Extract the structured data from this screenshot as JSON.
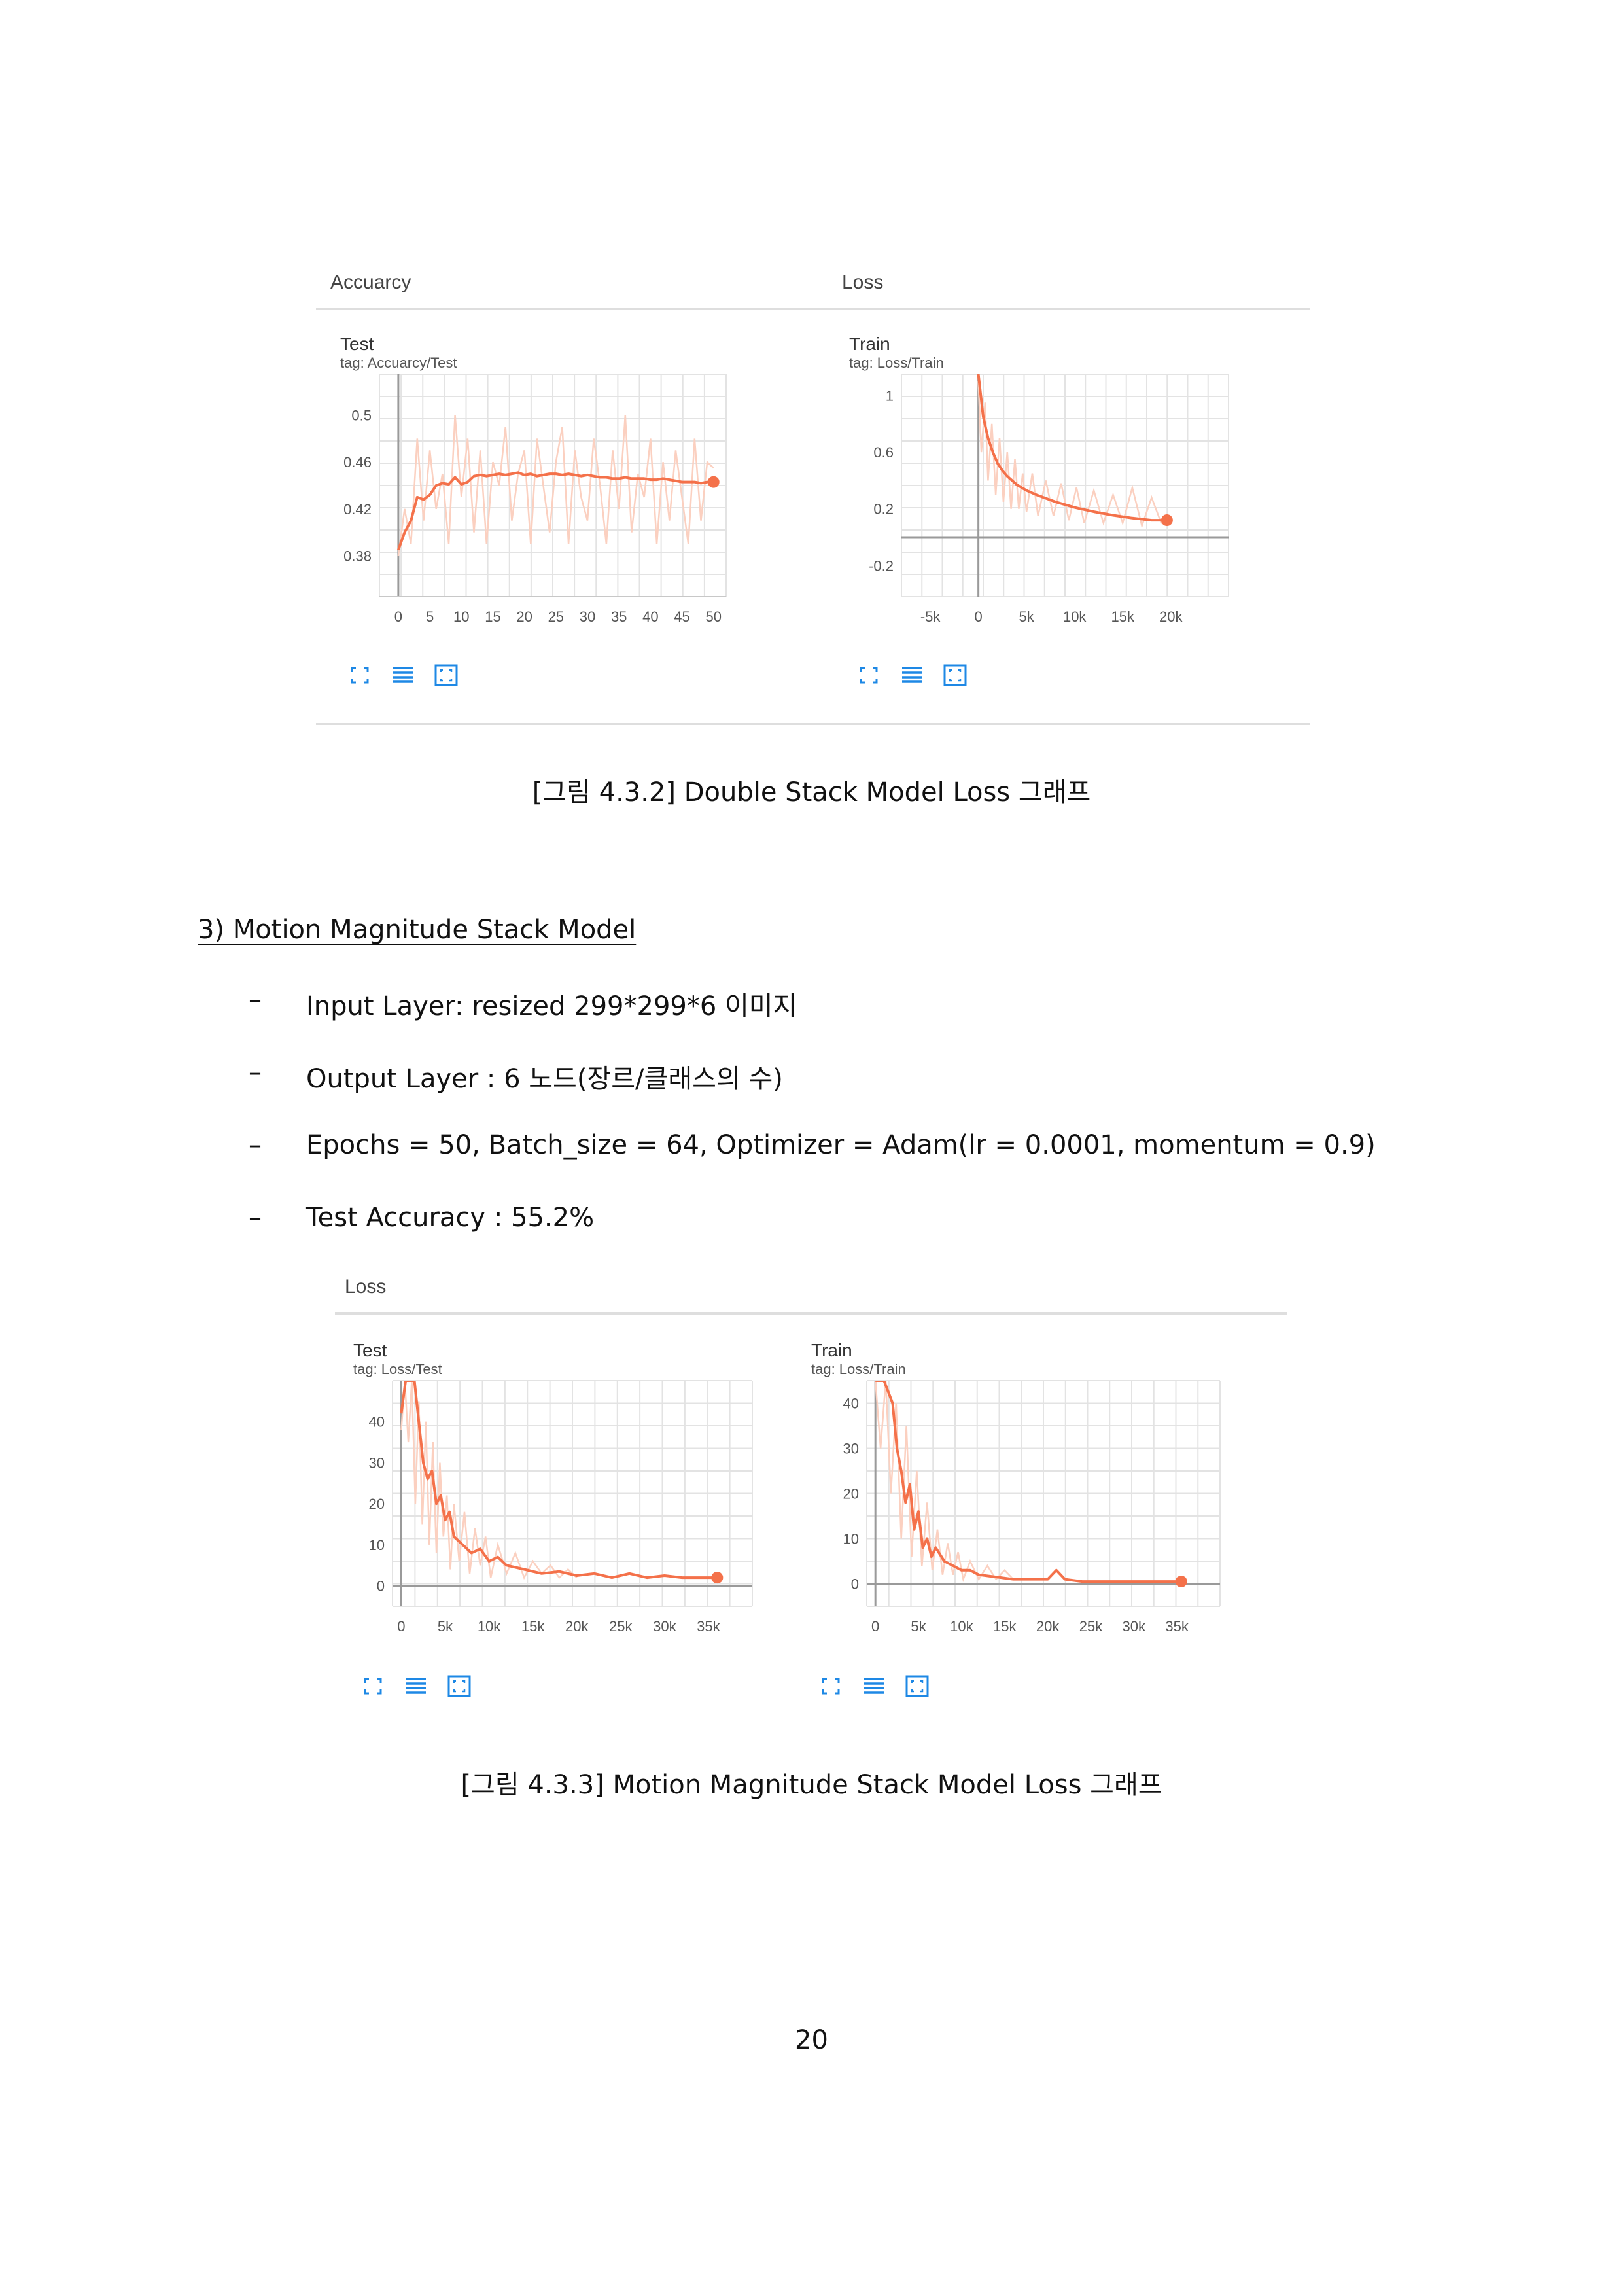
{
  "figure1": {
    "panels": [
      {
        "id": "f1p1",
        "group_title": "Accuarcy",
        "title": "Test",
        "tag": "tag: Accuarcy/Test",
        "chart_data": {
          "type": "line",
          "title": "Test",
          "x_ticks": [
            "0",
            "5",
            "10",
            "15",
            "20",
            "25",
            "30",
            "35",
            "40",
            "45",
            "50"
          ],
          "y_ticks": [
            "0.38",
            "0.42",
            "0.46",
            "0.5"
          ],
          "xlim": [
            -3,
            52
          ],
          "ylim": [
            0.345,
            0.535
          ],
          "smoothed": {
            "x": [
              0,
              1,
              2,
              3,
              4,
              5,
              6,
              7,
              8,
              9,
              10,
              11,
              12,
              13,
              14,
              15,
              16,
              17,
              18,
              19,
              20,
              21,
              22,
              23,
              24,
              25,
              26,
              27,
              28,
              29,
              30,
              31,
              32,
              33,
              34,
              35,
              36,
              37,
              38,
              39,
              40,
              41,
              42,
              43,
              44,
              45,
              46,
              47,
              48,
              49,
              50
            ],
            "y": [
              0.385,
              0.4,
              0.41,
              0.43,
              0.428,
              0.432,
              0.44,
              0.442,
              0.441,
              0.447,
              0.441,
              0.443,
              0.448,
              0.449,
              0.448,
              0.449,
              0.45,
              0.449,
              0.45,
              0.451,
              0.449,
              0.45,
              0.448,
              0.449,
              0.45,
              0.45,
              0.449,
              0.45,
              0.449,
              0.448,
              0.449,
              0.448,
              0.447,
              0.447,
              0.446,
              0.446,
              0.447,
              0.446,
              0.446,
              0.446,
              0.445,
              0.445,
              0.446,
              0.445,
              0.444,
              0.443,
              0.443,
              0.443,
              0.442,
              0.443,
              0.443
            ]
          },
          "raw": {
            "x": [
              0,
              1,
              2,
              3,
              4,
              5,
              6,
              7,
              8,
              9,
              10,
              11,
              12,
              13,
              14,
              15,
              16,
              17,
              18,
              19,
              20,
              21,
              22,
              23,
              24,
              25,
              26,
              27,
              28,
              29,
              30,
              31,
              32,
              33,
              34,
              35,
              36,
              37,
              38,
              39,
              40,
              41,
              42,
              43,
              44,
              45,
              46,
              47,
              48,
              49,
              50
            ],
            "y": [
              0.38,
              0.42,
              0.39,
              0.48,
              0.41,
              0.47,
              0.42,
              0.45,
              0.39,
              0.5,
              0.43,
              0.48,
              0.4,
              0.47,
              0.39,
              0.46,
              0.44,
              0.49,
              0.41,
              0.45,
              0.47,
              0.39,
              0.48,
              0.44,
              0.4,
              0.46,
              0.49,
              0.39,
              0.47,
              0.43,
              0.41,
              0.48,
              0.44,
              0.39,
              0.47,
              0.42,
              0.5,
              0.4,
              0.45,
              0.43,
              0.48,
              0.39,
              0.46,
              0.41,
              0.47,
              0.43,
              0.39,
              0.48,
              0.41,
              0.46,
              0.455
            ]
          },
          "colors": {
            "smoothed": "#f4714a",
            "raw": "#fbd0c0"
          }
        }
      },
      {
        "id": "f1p2",
        "group_title": "Loss",
        "title": "Train",
        "tag": "tag: Loss/Train",
        "chart_data": {
          "type": "line",
          "title": "Train",
          "x_ticks": [
            "-5k",
            "0",
            "5k",
            "10k",
            "15k",
            "20k"
          ],
          "y_ticks": [
            "-0.2",
            "0.2",
            "0.6",
            "1"
          ],
          "xlim": [
            -8000,
            26000
          ],
          "ylim": [
            -0.42,
            1.15
          ],
          "smoothed": {
            "x": [
              0,
              500,
              1000,
              1500,
              2000,
              2500,
              3000,
              4000,
              5000,
              6000,
              8000,
              10000,
              12000,
              14000,
              16000,
              18000,
              19600
            ],
            "y": [
              1.15,
              0.85,
              0.7,
              0.6,
              0.52,
              0.47,
              0.43,
              0.37,
              0.33,
              0.3,
              0.25,
              0.21,
              0.18,
              0.155,
              0.135,
              0.12,
              0.12
            ]
          },
          "raw": {
            "x": [
              0,
              300,
              700,
              1000,
              1400,
              1800,
              2200,
              2600,
              3000,
              3400,
              3800,
              4200,
              4600,
              5000,
              5600,
              6200,
              7000,
              7800,
              8600,
              9400,
              10200,
              11000,
              12000,
              13000,
              14000,
              15000,
              16000,
              17000,
              18000,
              19000,
              19600
            ],
            "y": [
              1.1,
              0.6,
              0.95,
              0.4,
              0.8,
              0.3,
              0.7,
              0.25,
              0.6,
              0.2,
              0.55,
              0.2,
              0.45,
              0.18,
              0.45,
              0.15,
              0.4,
              0.15,
              0.38,
              0.12,
              0.35,
              0.1,
              0.33,
              0.1,
              0.3,
              0.1,
              0.35,
              0.08,
              0.28,
              0.1,
              0.12
            ]
          },
          "colors": {
            "smoothed": "#f4714a",
            "raw": "#fbd0c0"
          }
        }
      }
    ],
    "caption": "[그림 4.3.2] Double Stack Model Loss 그래프"
  },
  "section": {
    "heading": "3) Motion Magnitude Stack Model",
    "bullets": [
      "Input Layer: resized 299*299*6 이미지",
      "Output Layer : 6 노드(장르/클래스의 수)",
      "Epochs = 50, Batch_size = 64, Optimizer = Adam(lr = 0.0001, momentum = 0.9)",
      "Test Accuracy : 55.2%"
    ],
    "bullet_marker": "–"
  },
  "figure2": {
    "group_title": "Loss",
    "panels": [
      {
        "id": "f2p1",
        "title": "Test",
        "tag": "tag: Loss/Test",
        "chart_data": {
          "type": "line",
          "title": "Test",
          "x_ticks": [
            "0",
            "5k",
            "10k",
            "15k",
            "20k",
            "25k",
            "30k",
            "35k"
          ],
          "y_ticks": [
            "0",
            "10",
            "20",
            "30",
            "40"
          ],
          "xlim": [
            -1000,
            40000
          ],
          "ylim": [
            -5,
            50
          ],
          "smoothed": {
            "x": [
              0,
              500,
              1000,
              1500,
              2000,
              2500,
              3000,
              3500,
              4000,
              4500,
              5000,
              5500,
              6000,
              7000,
              8000,
              9000,
              10000,
              11000,
              12000,
              14000,
              16000,
              18000,
              20000,
              22000,
              24000,
              26000,
              28000,
              30000,
              32000,
              34000,
              36000
            ],
            "y": [
              42,
              50,
              50,
              50,
              40,
              30,
              26,
              28,
              20,
              22,
              16,
              18,
              12,
              10,
              8,
              9,
              6,
              7,
              5,
              4,
              3,
              3.5,
              2.5,
              3,
              2,
              3,
              2,
              2.5,
              2,
              2,
              2
            ]
          },
          "raw": {
            "x": [
              0,
              400,
              800,
              1200,
              1600,
              2000,
              2400,
              2800,
              3200,
              3600,
              4000,
              4400,
              4800,
              5200,
              5600,
              6000,
              6600,
              7200,
              7800,
              8400,
              9000,
              9600,
              10200,
              11000,
              12000,
              13000,
              14000,
              15000,
              16000,
              17000,
              18000,
              19000,
              20000
            ],
            "y": [
              38,
              50,
              35,
              50,
              20,
              45,
              15,
              40,
              10,
              35,
              8,
              30,
              12,
              22,
              4,
              20,
              6,
              18,
              3,
              14,
              5,
              12,
              2,
              10,
              3,
              8,
              2,
              6,
              3,
              5,
              2,
              4,
              2
            ]
          },
          "colors": {
            "smoothed": "#f4714a",
            "raw": "#fbd0c0"
          }
        }
      },
      {
        "id": "f2p2",
        "title": "Train",
        "tag": "tag: Loss/Train",
        "chart_data": {
          "type": "line",
          "title": "Train",
          "x_ticks": [
            "0",
            "5k",
            "10k",
            "15k",
            "20k",
            "25k",
            "30k",
            "35k"
          ],
          "y_ticks": [
            "0",
            "10",
            "20",
            "30",
            "40"
          ],
          "xlim": [
            -1000,
            40000
          ],
          "ylim": [
            -5,
            45
          ],
          "smoothed": {
            "x": [
              0,
              1000,
              2000,
              2500,
              3000,
              3500,
              4000,
              4500,
              5000,
              5500,
              6000,
              6500,
              7000,
              8000,
              9000,
              10000,
              11000,
              12000,
              14000,
              16000,
              18000,
              20000,
              21000,
              22000,
              24000,
              26000,
              28000,
              30000,
              32000,
              34000,
              35500
            ],
            "y": [
              45,
              45,
              40,
              30,
              25,
              18,
              22,
              12,
              16,
              8,
              10,
              6,
              8,
              5,
              4,
              3,
              3,
              2,
              1.5,
              1,
              1,
              1,
              3,
              1,
              0.5,
              0.5,
              0.5,
              0.5,
              0.5,
              0.5,
              0.5
            ]
          },
          "raw": {
            "x": [
              0,
              600,
              1200,
              1800,
              2400,
              3000,
              3600,
              4200,
              4800,
              5400,
              6000,
              6600,
              7200,
              7800,
              8400,
              9000,
              9600,
              10200,
              11000,
              12000,
              13000,
              14000,
              15000,
              16000
            ],
            "y": [
              45,
              30,
              45,
              20,
              40,
              10,
              35,
              6,
              25,
              4,
              18,
              3,
              12,
              2,
              9,
              2,
              7,
              1,
              5,
              1,
              4,
              1,
              3,
              1
            ]
          },
          "colors": {
            "smoothed": "#f4714a",
            "raw": "#fbd0c0"
          }
        }
      }
    ],
    "caption": "[그림 4.3.3] Motion Magnitude Stack Model Loss 그래프"
  },
  "page_number": "20"
}
